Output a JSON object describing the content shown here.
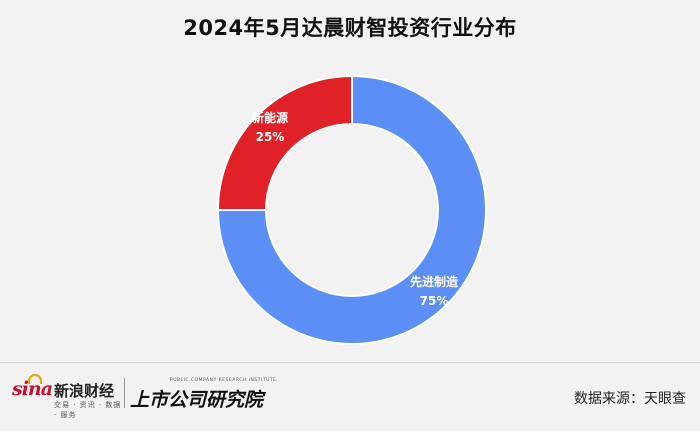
{
  "chart_data": {
    "type": "pie",
    "title": "2024年5月达晨财智投资行业分布",
    "slices": [
      {
        "label": "先进制造",
        "value": 75,
        "value_label": "75%",
        "color": "#5b8ff5"
      },
      {
        "label": "新能源",
        "value": 25,
        "value_label": "25%",
        "color": "#e02127"
      }
    ]
  },
  "footer": {
    "sina_logo_text": "sina",
    "sina_name": "新浪财经",
    "sina_tagline": "交易 · 资讯 · 数据 · 服务",
    "institute_en": "PUBLIC COMPANY RESEARCH INSTITUTE",
    "institute_cn": "上市公司研究院",
    "source": "数据来源：天眼查"
  }
}
